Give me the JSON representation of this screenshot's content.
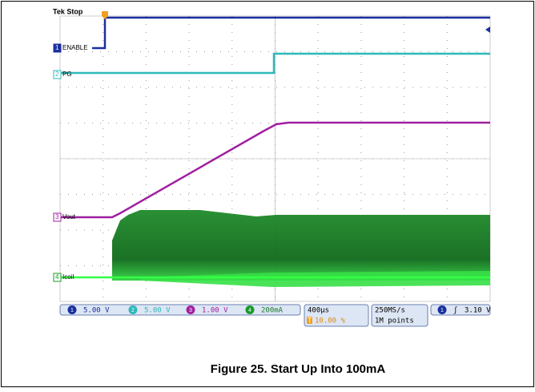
{
  "header": {
    "status": "Tek Stop"
  },
  "channels": [
    {
      "marker": "1",
      "label": "ENABLE"
    },
    {
      "marker": "2",
      "label": "PG"
    },
    {
      "marker": "3",
      "label": "Vout"
    },
    {
      "marker": "4",
      "label": "Icoil"
    }
  ],
  "status_bar": {
    "ch1": "5.00 V",
    "ch2": "5.00 V",
    "ch3": "1.00 V",
    "ch4": "200mA",
    "timebase": "400µs",
    "trigger_marker": "T",
    "trigger_position": "10.00 %",
    "sample_rate": "250MS/s",
    "record_length": "1M points",
    "trigger_channel": "1",
    "trigger_level": "3.10 V"
  },
  "caption": "Figure 25. Start Up Into 100mA"
}
